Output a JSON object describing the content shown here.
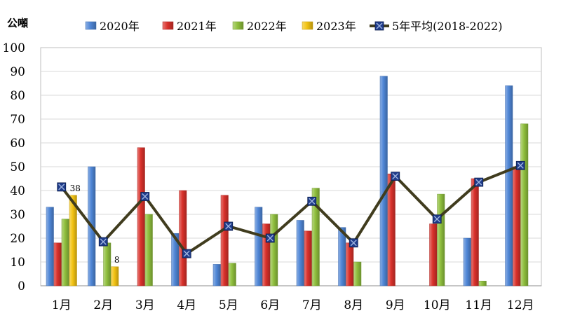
{
  "chart_data": {
    "type": "bar",
    "unit_label": "公噸",
    "categories": [
      "1月",
      "2月",
      "3月",
      "4月",
      "5月",
      "6月",
      "7月",
      "8月",
      "9月",
      "10月",
      "11月",
      "12月"
    ],
    "ylim": [
      0,
      100
    ],
    "yticks": [
      0,
      10,
      20,
      30,
      40,
      50,
      60,
      70,
      80,
      90,
      100
    ],
    "grid": true,
    "legend_position": "top",
    "series": [
      {
        "name": "2020年",
        "kind": "bar",
        "color": "#4f86d6",
        "values": [
          33,
          50,
          null,
          22,
          9,
          33,
          27.5,
          24.5,
          88,
          null,
          20,
          84
        ]
      },
      {
        "name": "2021年",
        "kind": "bar",
        "color": "#d9312b",
        "values": [
          18,
          null,
          58,
          40,
          38,
          26,
          23,
          18,
          47,
          26,
          45,
          50
        ]
      },
      {
        "name": "2022年",
        "kind": "bar",
        "color": "#8fbf3d",
        "values": [
          28,
          18,
          30,
          null,
          9.5,
          30,
          41,
          10,
          null,
          38.5,
          2,
          68
        ]
      },
      {
        "name": "2023年",
        "kind": "bar",
        "color": "#f2c313",
        "values": [
          38,
          8,
          null,
          null,
          null,
          null,
          null,
          null,
          null,
          null,
          null,
          null
        ]
      },
      {
        "name": "5年平均(2018-2022)",
        "kind": "line",
        "color": "#403c1e",
        "marker_color": "#1f3c8a",
        "values": [
          41.5,
          18.5,
          37.5,
          13.5,
          25,
          20,
          35.5,
          18,
          46,
          28,
          43.5,
          50.5
        ]
      }
    ],
    "data_labels": [
      {
        "series": "2023年",
        "category": "1月",
        "text": "38"
      },
      {
        "series": "2023年",
        "category": "2月",
        "text": "8"
      }
    ]
  }
}
